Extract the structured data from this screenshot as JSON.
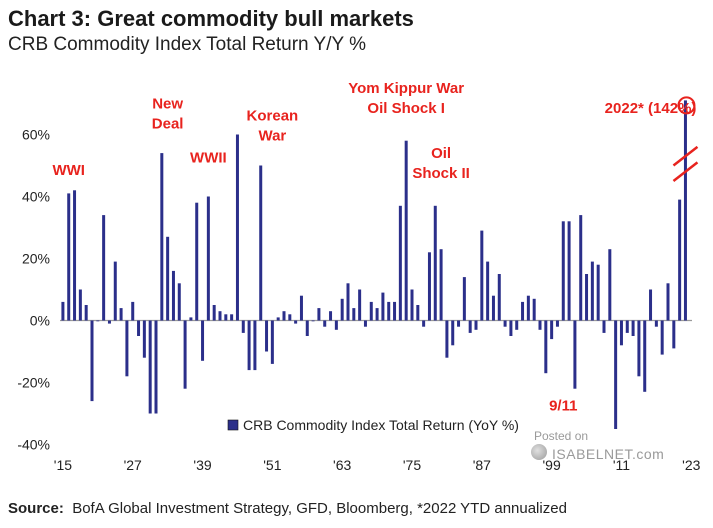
{
  "header": {
    "title": "Chart 3: Great commodity bull markets",
    "subtitle": "CRB Commodity Index Total Return Y/Y %"
  },
  "footer": {
    "source_label": "Source:",
    "source_text": "BofA Global Investment Strategy, GFD, Bloomberg, *2022  YTD annualized"
  },
  "watermark": {
    "line1": "Posted on",
    "line2": "ISABELNET.com"
  },
  "chart_data": {
    "type": "bar",
    "title": "Chart 3: Great commodity bull markets",
    "subtitle": "CRB Commodity Index Total Return Y/Y %",
    "x": [
      1915,
      1916,
      1917,
      1918,
      1919,
      1920,
      1921,
      1922,
      1923,
      1924,
      1925,
      1926,
      1927,
      1928,
      1929,
      1930,
      1931,
      1932,
      1933,
      1934,
      1935,
      1936,
      1937,
      1938,
      1939,
      1940,
      1941,
      1942,
      1943,
      1944,
      1945,
      1946,
      1947,
      1948,
      1949,
      1950,
      1951,
      1952,
      1953,
      1954,
      1955,
      1956,
      1957,
      1958,
      1959,
      1960,
      1961,
      1962,
      1963,
      1964,
      1965,
      1966,
      1967,
      1968,
      1969,
      1970,
      1971,
      1972,
      1973,
      1974,
      1975,
      1976,
      1977,
      1978,
      1979,
      1980,
      1981,
      1982,
      1983,
      1984,
      1985,
      1986,
      1987,
      1988,
      1989,
      1990,
      1991,
      1992,
      1993,
      1994,
      1995,
      1996,
      1997,
      1998,
      1999,
      2000,
      2001,
      2002,
      2003,
      2004,
      2005,
      2006,
      2007,
      2008,
      2009,
      2010,
      2011,
      2012,
      2013,
      2014,
      2015,
      2016,
      2017,
      2018,
      2019,
      2020,
      2021,
      2022
    ],
    "series": [
      {
        "name": "CRB Commodity Index Total Return (YoY %)",
        "color": "#2b2f8a",
        "values": [
          6,
          41,
          42,
          10,
          5,
          -26,
          0,
          34,
          -1,
          19,
          4,
          -18,
          6,
          -5,
          -12,
          -30,
          -30,
          54,
          27,
          16,
          12,
          -22,
          1,
          38,
          -13,
          40,
          5,
          3,
          2,
          2,
          60,
          -4,
          -16,
          -16,
          50,
          -10,
          -14,
          1,
          3,
          2,
          -1,
          8,
          -5,
          0,
          4,
          -2,
          3,
          -3,
          7,
          12,
          4,
          10,
          -2,
          6,
          4,
          9,
          6,
          6,
          37,
          58,
          10,
          5,
          -2,
          22,
          37,
          23,
          -12,
          -8,
          -2,
          14,
          -4,
          -3,
          29,
          19,
          8,
          15,
          -2,
          -5,
          -3,
          6,
          8,
          7,
          -3,
          -17,
          -6,
          -2,
          32,
          32,
          -22,
          34,
          15,
          19,
          18,
          -4,
          23,
          -35,
          -8,
          -4,
          -5,
          -18,
          -23,
          10,
          -2,
          -11,
          12,
          -9,
          39,
          142
        ]
      }
    ],
    "y_display_cap": 71,
    "ylim": [
      -40,
      70
    ],
    "yticks": [
      -40,
      -20,
      0,
      20,
      40,
      60
    ],
    "ytick_labels": [
      "-40%",
      "-20%",
      "0%",
      "20%",
      "40%",
      "60%"
    ],
    "xlim": [
      1914.5,
      2024.5
    ],
    "xticks": [
      1915,
      1927,
      1939,
      1951,
      1963,
      1975,
      1987,
      1999,
      2011,
      2023
    ],
    "xtick_labels": [
      "'15",
      "'27",
      "'39",
      "'51",
      "'63",
      "'75",
      "'87",
      "'99",
      "'11",
      "'23"
    ],
    "legend": {
      "label": "CRB Commodity Index Total Return (YoY %)",
      "position": "bottom-center"
    },
    "annotations": [
      {
        "text": "WWI",
        "x": 1916,
        "y": 47,
        "lines": [
          "WWI"
        ]
      },
      {
        "text": "New Deal",
        "x": 1933,
        "y": 62,
        "lines": [
          "New",
          "Deal"
        ]
      },
      {
        "text": "WWII",
        "x": 1940,
        "y": 51,
        "lines": [
          "WWII"
        ]
      },
      {
        "text": "Korean War",
        "x": 1951,
        "y": 58,
        "lines": [
          "Korean",
          "War"
        ]
      },
      {
        "text": "Yom Kippur War Oil Shock I",
        "x": 1974,
        "y": 67,
        "lines": [
          "Yom Kippur War",
          "Oil Shock I"
        ]
      },
      {
        "text": "Oil Shock II",
        "x": 1980,
        "y": 46,
        "lines": [
          "Oil",
          "Shock II"
        ]
      },
      {
        "text": "9/11",
        "x": 2001,
        "y": -29,
        "lines": [
          "9/11"
        ]
      },
      {
        "text": "2022* (142%)",
        "x": 2016,
        "y": 67,
        "lines": [
          "2022* (142%)"
        ]
      }
    ],
    "axis_break": {
      "x": 2022,
      "note": "bar truncated; actual value 142%"
    },
    "annotation_color": "#e8231e",
    "grid": false
  }
}
